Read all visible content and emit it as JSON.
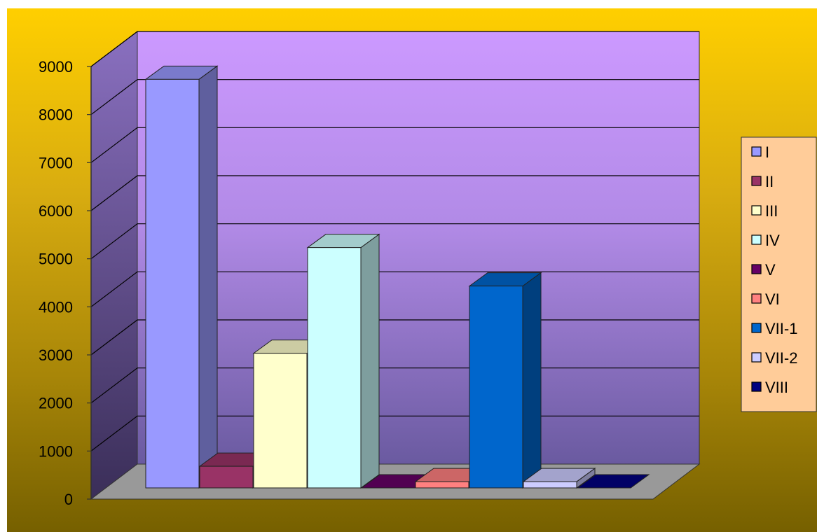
{
  "chart_data": {
    "type": "bar",
    "title": "",
    "xlabel": "",
    "ylabel": "",
    "ylim": [
      0,
      9000
    ],
    "yticks": [
      0,
      1000,
      2000,
      3000,
      4000,
      5000,
      6000,
      7000,
      8000,
      9000
    ],
    "grid": true,
    "legend_position": "right",
    "series": [
      {
        "name": "I",
        "value": 8500,
        "color": "#9999ff"
      },
      {
        "name": "II",
        "value": 450,
        "color": "#993366"
      },
      {
        "name": "III",
        "value": 2800,
        "color": "#ffffcc"
      },
      {
        "name": "IV",
        "value": 5000,
        "color": "#ccffff"
      },
      {
        "name": "V",
        "value": 0,
        "color": "#660066"
      },
      {
        "name": "VI",
        "value": 130,
        "color": "#ff8080"
      },
      {
        "name": "VII-1",
        "value": 4200,
        "color": "#0066cc"
      },
      {
        "name": "VII-2",
        "value": 130,
        "color": "#ccccff"
      },
      {
        "name": "VIII",
        "value": 0,
        "color": "#000080"
      }
    ],
    "colors": {
      "background_top": "#ffcf00",
      "background_bottom": "#766000",
      "back_wall": "#cc99ff",
      "floor": "#999999",
      "legend_background": "#ffcc99"
    }
  }
}
